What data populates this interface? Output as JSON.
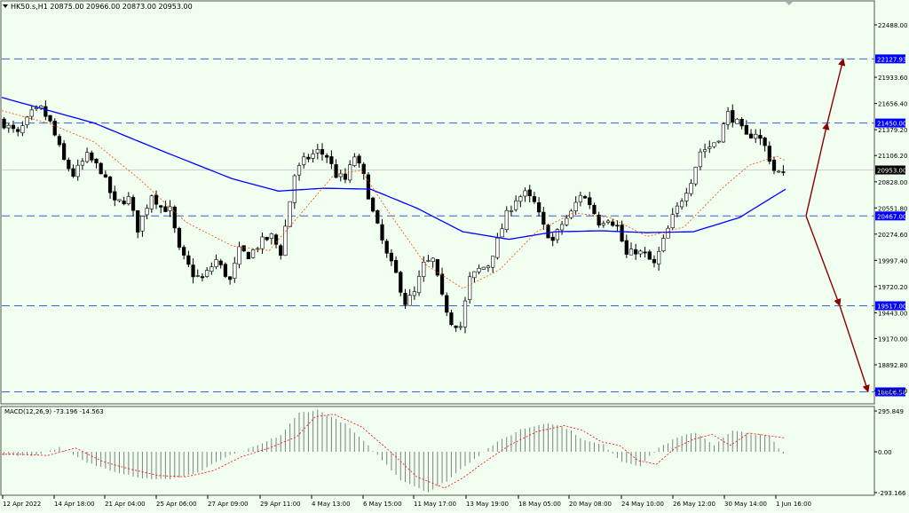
{
  "header": {
    "symbol_line": "HK50.s,H1  20875.00 20966.00 20873.00 20953.00",
    "macd_label": "MACD(12,26,9) -73.196 -14.563"
  },
  "colors": {
    "background": "#f0fff0",
    "candle": "#000000",
    "ma_slow": "#0000ff",
    "ma_fast": "#ff4500",
    "level_line": "#3a5fd9",
    "level_label_bg": "#0000ff",
    "arrow": "#8b0000",
    "price_label_bg": "#000000",
    "macd_hist": "#808080",
    "macd_signal": "#ff0000"
  },
  "chart_data": {
    "type": "candlestick",
    "symbol": "HK50.s",
    "timeframe": "H1",
    "price_axis_ticks": [
      "22488.00",
      "21933.60",
      "21656.40",
      "21379.20",
      "21106.20",
      "20828.00",
      "20551.80",
      "20274.60",
      "19997.40",
      "19720.20",
      "19443.00",
      "19170.00",
      "18892.80",
      "18619.40"
    ],
    "price_axis_tick_values": [
      22488.0,
      21933.6,
      21656.4,
      21379.2,
      21106.2,
      20828.0,
      20551.8,
      20274.6,
      19997.4,
      19720.2,
      19443.0,
      19170.0,
      18892.8,
      18619.4
    ],
    "price_range": [
      18600,
      22700
    ],
    "time_axis_labels": [
      "12 Apr 2022",
      "14 Apr 18:00",
      "21 Apr 04:00",
      "25 Apr 06:00",
      "27 Apr 09:00",
      "29 Apr 11:00",
      "4 May 13:00",
      "6 May 15:00",
      "11 May 17:00",
      "13 May 19:00",
      "18 May 05:00",
      "20 May 08:00",
      "24 May 10:00",
      "26 May 12:00",
      "30 May 14:00",
      "1 Jun 16:00"
    ],
    "horizontal_levels": [
      {
        "label": "22127.93",
        "value": 22127.93
      },
      {
        "label": "21450.00",
        "value": 21450.0
      },
      {
        "label": "20467.00",
        "value": 20467.0
      },
      {
        "label": "19517.00",
        "value": 19517.0
      },
      {
        "label": "18606.58",
        "value": 18606.58
      }
    ],
    "current_price": {
      "label": "20953.00",
      "value": 20953.0
    },
    "close_path": [
      [
        0,
        21480
      ],
      [
        4,
        21330
      ],
      [
        7,
        21550
      ],
      [
        9,
        21600
      ],
      [
        11,
        21450
      ],
      [
        14,
        21050
      ],
      [
        16,
        20900
      ],
      [
        19,
        21100
      ],
      [
        22,
        20950
      ],
      [
        25,
        20600
      ],
      [
        28,
        20650
      ],
      [
        30,
        20330
      ],
      [
        33,
        20700
      ],
      [
        35,
        20560
      ],
      [
        37,
        20530
      ],
      [
        39,
        20100
      ],
      [
        42,
        19850
      ],
      [
        44,
        19800
      ],
      [
        47,
        20000
      ],
      [
        50,
        19780
      ],
      [
        52,
        20100
      ],
      [
        54,
        20050
      ],
      [
        57,
        20200
      ],
      [
        59,
        20250
      ],
      [
        61,
        20080
      ],
      [
        64,
        20900
      ],
      [
        66,
        21050
      ],
      [
        69,
        21150
      ],
      [
        71,
        21100
      ],
      [
        73,
        20900
      ],
      [
        75,
        20850
      ],
      [
        77,
        21100
      ],
      [
        79,
        20880
      ],
      [
        81,
        20500
      ],
      [
        84,
        20050
      ],
      [
        86,
        19850
      ],
      [
        88,
        19550
      ],
      [
        90,
        19650
      ],
      [
        92,
        19950
      ],
      [
        94,
        20000
      ],
      [
        96,
        19600
      ],
      [
        98,
        19350
      ],
      [
        100,
        19300
      ],
      [
        102,
        19800
      ],
      [
        104,
        19900
      ],
      [
        106,
        19950
      ],
      [
        108,
        20200
      ],
      [
        110,
        20480
      ],
      [
        112,
        20650
      ],
      [
        114,
        20700
      ],
      [
        116,
        20600
      ],
      [
        118,
        20350
      ],
      [
        120,
        20200
      ],
      [
        122,
        20380
      ],
      [
        124,
        20500
      ],
      [
        126,
        20700
      ],
      [
        128,
        20600
      ],
      [
        130,
        20400
      ],
      [
        132,
        20450
      ],
      [
        134,
        20350
      ],
      [
        136,
        20050
      ],
      [
        138,
        20100
      ],
      [
        140,
        20050
      ],
      [
        142,
        19950
      ],
      [
        144,
        20200
      ],
      [
        146,
        20450
      ],
      [
        148,
        20650
      ],
      [
        150,
        20850
      ],
      [
        152,
        21150
      ],
      [
        154,
        21200
      ],
      [
        156,
        21300
      ],
      [
        158,
        21550
      ],
      [
        160,
        21450
      ],
      [
        162,
        21300
      ],
      [
        164,
        21350
      ],
      [
        166,
        21200
      ],
      [
        168,
        20950
      ],
      [
        170,
        20900
      ]
    ],
    "ma_slow_path": [
      [
        0,
        21720
      ],
      [
        20,
        21450
      ],
      [
        35,
        21150
      ],
      [
        50,
        20860
      ],
      [
        60,
        20730
      ],
      [
        70,
        20760
      ],
      [
        80,
        20750
      ],
      [
        90,
        20550
      ],
      [
        100,
        20300
      ],
      [
        110,
        20220
      ],
      [
        120,
        20300
      ],
      [
        130,
        20310
      ],
      [
        140,
        20290
      ],
      [
        150,
        20300
      ],
      [
        160,
        20450
      ],
      [
        170,
        20750
      ]
    ],
    "ma_fast_path": [
      [
        0,
        21580
      ],
      [
        10,
        21450
      ],
      [
        20,
        21250
      ],
      [
        30,
        20850
      ],
      [
        40,
        20400
      ],
      [
        50,
        20150
      ],
      [
        58,
        20100
      ],
      [
        65,
        20500
      ],
      [
        72,
        20900
      ],
      [
        78,
        20950
      ],
      [
        84,
        20500
      ],
      [
        92,
        19950
      ],
      [
        100,
        19700
      ],
      [
        108,
        19900
      ],
      [
        116,
        20300
      ],
      [
        124,
        20500
      ],
      [
        132,
        20450
      ],
      [
        140,
        20250
      ],
      [
        148,
        20350
      ],
      [
        156,
        20750
      ],
      [
        162,
        21000
      ],
      [
        168,
        21100
      ],
      [
        170,
        21050
      ]
    ],
    "projection_up": [
      [
        20467.0,
        21450.0
      ],
      [
        21450.0,
        22127.93
      ]
    ],
    "projection_down": [
      [
        20467.0,
        19517.0
      ],
      [
        19517.0,
        18606.58
      ]
    ],
    "macd": {
      "label": "MACD(12,26,9) -73.196 -14.563",
      "main": -73.196,
      "signal": -14.563,
      "axis_ticks": [
        "295.849",
        "0.00",
        "-293.166"
      ],
      "axis_tick_values": [
        295.849,
        0.0,
        -293.166
      ],
      "range": [
        -300,
        300
      ],
      "hist_path": [
        [
          0,
          -20
        ],
        [
          6,
          -30
        ],
        [
          12,
          30
        ],
        [
          18,
          -80
        ],
        [
          24,
          -140
        ],
        [
          30,
          -190
        ],
        [
          36,
          -200
        ],
        [
          42,
          -150
        ],
        [
          48,
          -40
        ],
        [
          54,
          30
        ],
        [
          60,
          120
        ],
        [
          64,
          280
        ],
        [
          68,
          300
        ],
        [
          74,
          200
        ],
        [
          80,
          10
        ],
        [
          86,
          -200
        ],
        [
          92,
          -290
        ],
        [
          96,
          -210
        ],
        [
          100,
          -100
        ],
        [
          106,
          50
        ],
        [
          112,
          160
        ],
        [
          118,
          210
        ],
        [
          122,
          170
        ],
        [
          126,
          80
        ],
        [
          130,
          50
        ],
        [
          134,
          -70
        ],
        [
          138,
          -100
        ],
        [
          142,
          30
        ],
        [
          146,
          100
        ],
        [
          150,
          140
        ],
        [
          154,
          50
        ],
        [
          158,
          150
        ],
        [
          162,
          130
        ],
        [
          166,
          110
        ],
        [
          170,
          -60
        ]
      ]
    }
  }
}
